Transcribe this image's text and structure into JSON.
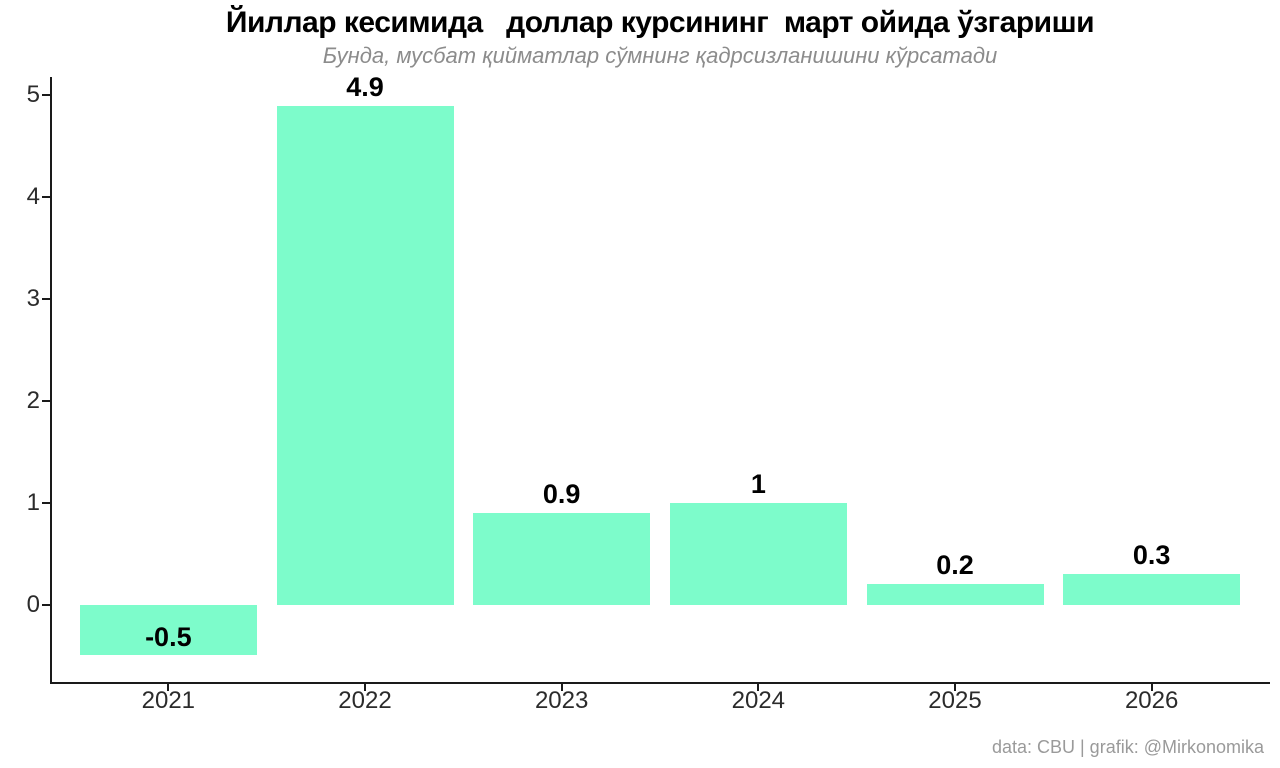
{
  "header": {
    "title": "Йиллар кесимида   доллар курсининг  март ойида ўзгариши",
    "subtitle": "Бунда, мусбат қийматлар сўмнинг қадрсизланишини кўрсатади"
  },
  "chart_data": {
    "type": "bar",
    "title": "Йиллар кесимида   доллар курсининг  март ойида ўзгариши",
    "subtitle": "Бунда, мусбат қийматлар сўмнинг қадрсизланишини кўрсатади",
    "categories": [
      "2021",
      "2022",
      "2023",
      "2024",
      "2025",
      "2026"
    ],
    "values": [
      -0.5,
      4.9,
      0.9,
      1,
      0.2,
      0.3
    ],
    "value_labels": [
      "-0.5",
      "4.9",
      "0.9",
      "1",
      "0.2",
      "0.3"
    ],
    "y_ticks": [
      0,
      1,
      2,
      3,
      4,
      5
    ],
    "ylim": [
      -0.77,
      5.18
    ],
    "xlabel": "",
    "ylabel": "",
    "grid": false,
    "legend_position": "none",
    "bar_color": "#7dfccb",
    "axis_color": "#1a1a1a"
  },
  "footer": {
    "credit": "data: CBU | grafik: @Mirkonomika"
  }
}
